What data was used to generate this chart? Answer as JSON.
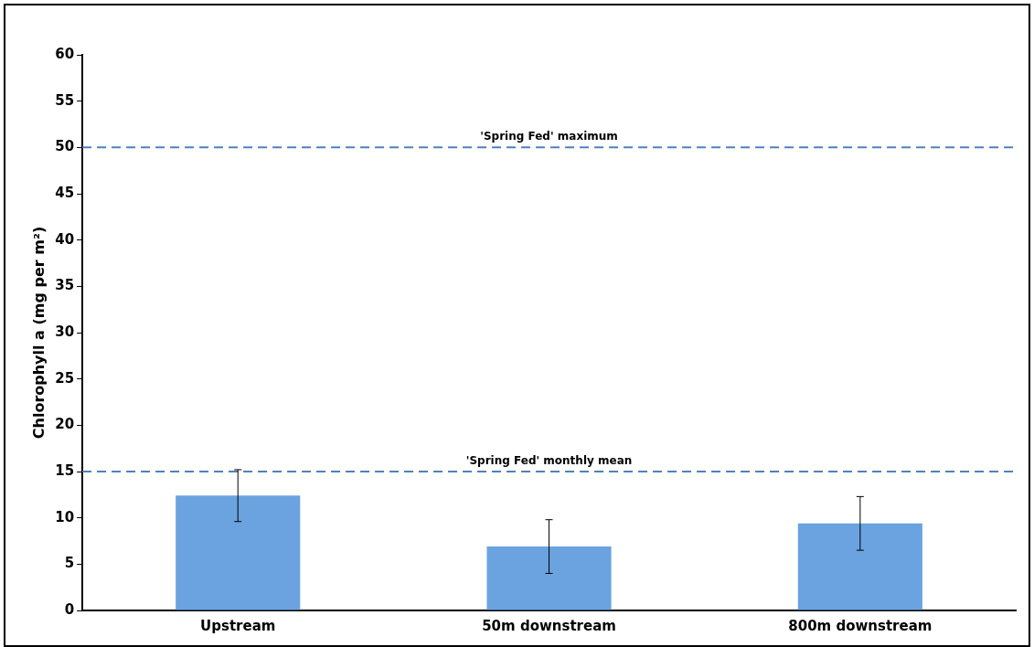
{
  "chart_data": {
    "type": "bar",
    "ylabel": "Chlorophyll a (mg per m²)",
    "categories": [
      "Upstream",
      "50m downstream",
      "800m downstream"
    ],
    "values": [
      12.4,
      6.9,
      9.4
    ],
    "errors": [
      2.8,
      2.9,
      2.9
    ],
    "color": "#6aa3e0",
    "ylim": [
      0,
      60
    ],
    "yticks": [
      0,
      5,
      10,
      15,
      20,
      25,
      30,
      35,
      40,
      45,
      50,
      55,
      60
    ],
    "ref_lines": [
      {
        "axis": "y",
        "value": 50,
        "label": "'Spring Fed' maximum",
        "color": "#4f81bd",
        "line_style": "dashed"
      },
      {
        "axis": "y",
        "value": 15,
        "label": "'Spring Fed' monthly mean",
        "color": "#4f81bd",
        "line_style": "dashed"
      }
    ],
    "grid": false,
    "legend": false
  }
}
